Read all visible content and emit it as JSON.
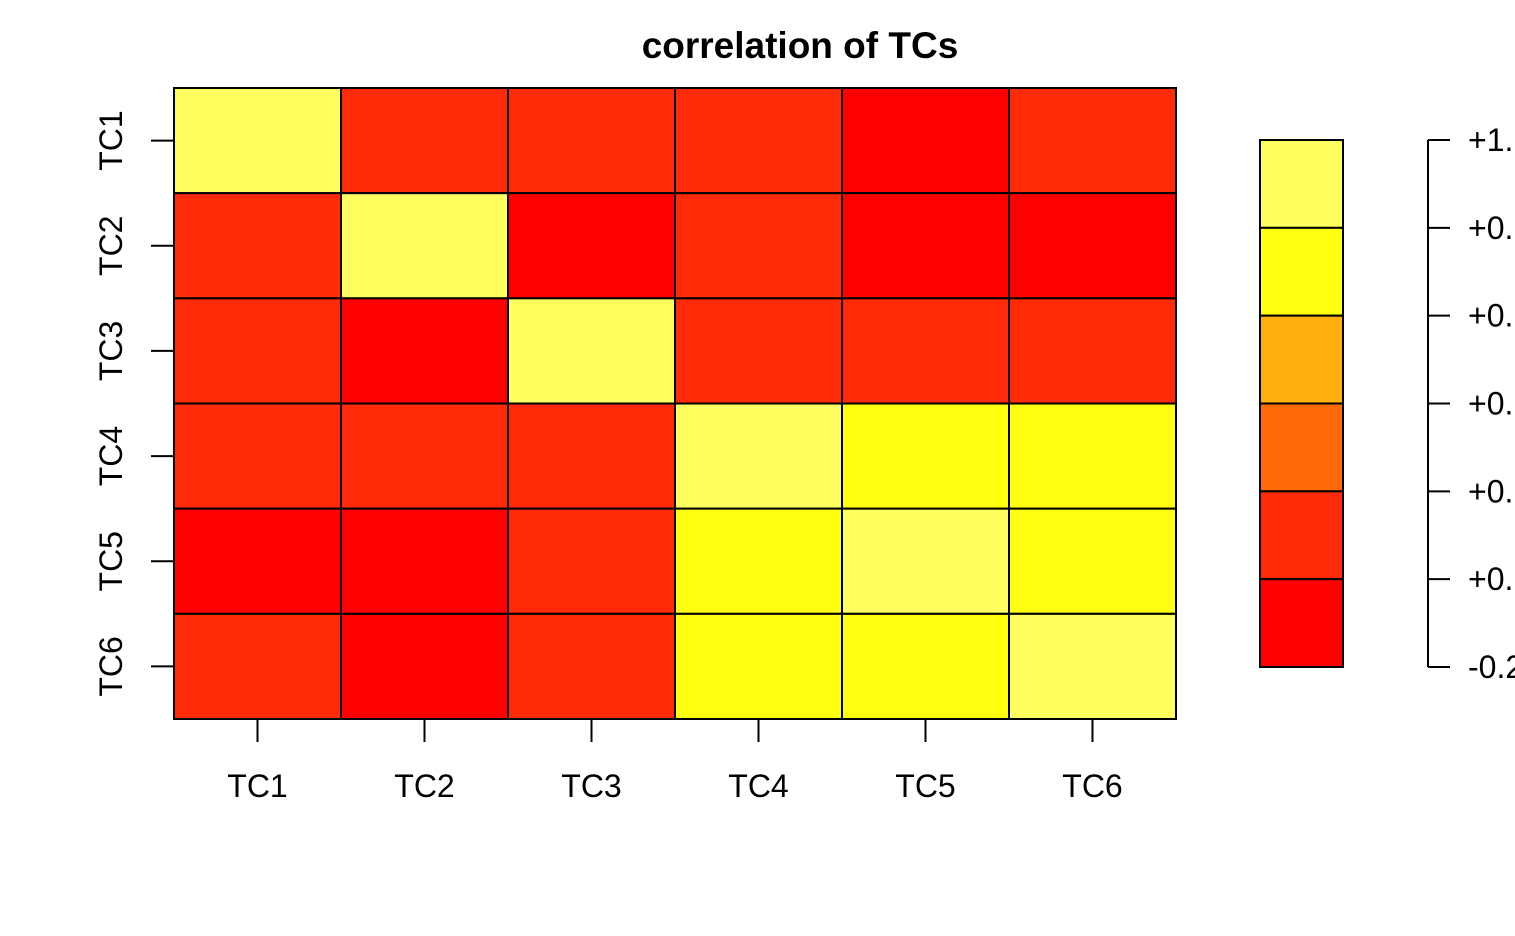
{
  "chart_data": {
    "type": "heatmap",
    "title": "correlation of TCs",
    "row_labels": [
      "TC1",
      "TC2",
      "TC3",
      "TC4",
      "TC5",
      "TC6"
    ],
    "col_labels": [
      "TC1",
      "TC2",
      "TC3",
      "TC4",
      "TC5",
      "TC6"
    ],
    "values": [
      [
        1.0,
        0.0,
        0.0,
        0.0,
        -0.1,
        0.0
      ],
      [
        0.0,
        1.0,
        -0.1,
        0.0,
        -0.1,
        -0.1
      ],
      [
        0.0,
        -0.1,
        1.0,
        0.0,
        0.0,
        0.0
      ],
      [
        0.0,
        0.0,
        0.0,
        1.0,
        0.7,
        0.7
      ],
      [
        -0.1,
        -0.1,
        0.0,
        0.7,
        1.0,
        0.7
      ],
      [
        0.0,
        -0.1,
        0.0,
        0.7,
        0.7,
        1.0
      ]
    ],
    "color_bins": [
      {
        "min": -0.2,
        "max": 0.0,
        "color": "#ff0000"
      },
      {
        "min": 0.0,
        "max": 0.2,
        "color": "#ff2a07"
      },
      {
        "min": 0.2,
        "max": 0.4,
        "color": "#ff6a09"
      },
      {
        "min": 0.4,
        "max": 0.6,
        "color": "#ffb00f"
      },
      {
        "min": 0.6,
        "max": 0.8,
        "color": "#ffff10"
      },
      {
        "min": 0.8,
        "max": 1.0,
        "color": "#ffff60"
      }
    ],
    "legend": {
      "position": "right",
      "tick_labels": [
        "+1.",
        "+0.",
        "+0.",
        "+0.",
        "+0.",
        "+0.",
        "-0.2"
      ]
    },
    "grid": false
  }
}
